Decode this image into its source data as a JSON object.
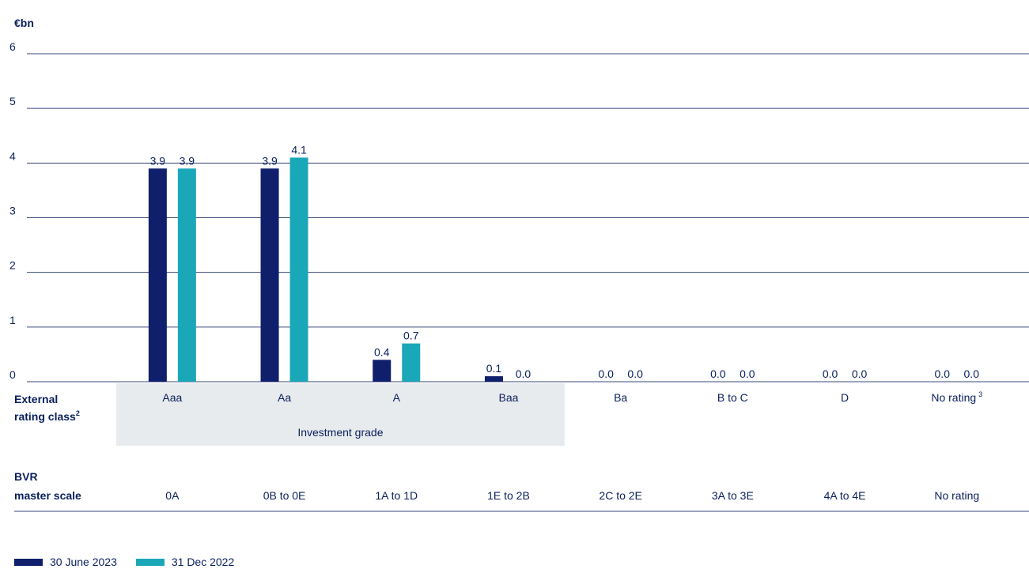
{
  "chart_data": {
    "type": "bar",
    "ylabel": "€bn",
    "ylim": [
      0,
      6
    ],
    "yticks": [
      "0",
      "1",
      "2",
      "3",
      "4",
      "5",
      "6"
    ],
    "grid": true,
    "categories": [
      "Aaa",
      "Aa",
      "A",
      "Baa",
      "Ba",
      "B to C",
      "D",
      "No rating"
    ],
    "category_superscripts": [
      "",
      "",
      "",
      "",
      "",
      "",
      "",
      "3"
    ],
    "series": [
      {
        "name": "30 June 2023",
        "color": "#0f1f6b",
        "values": [
          3.9,
          3.9,
          0.4,
          0.1,
          0.0,
          0.0,
          0.0,
          0.0
        ],
        "labels": [
          "3.9",
          "3.9",
          "0.4",
          "0.1",
          "0.0",
          "0.0",
          "0.0",
          "0.0"
        ]
      },
      {
        "name": "31 Dec 2022",
        "color": "#1aa7b8",
        "values": [
          3.9,
          4.1,
          0.7,
          0.0,
          0.0,
          0.0,
          0.0,
          0.0
        ],
        "labels": [
          "3.9",
          "4.1",
          "0.7",
          "0.0",
          "0.0",
          "0.0",
          "0.0",
          "0.0"
        ]
      }
    ],
    "external_rating_label": {
      "line1": "External",
      "line2": "rating class",
      "sup": "2"
    },
    "investment_grade_label": "Investment grade",
    "bvr_label": {
      "line1": "BVR",
      "line2": "master scale"
    },
    "bvr_scale": [
      "0A",
      "0B to 0E",
      "1A to  1D",
      "1E to 2B",
      "2C to 2E",
      "3A to 3E",
      "4A to 4E",
      "No rating"
    ],
    "legend_position": "bottom-left"
  }
}
